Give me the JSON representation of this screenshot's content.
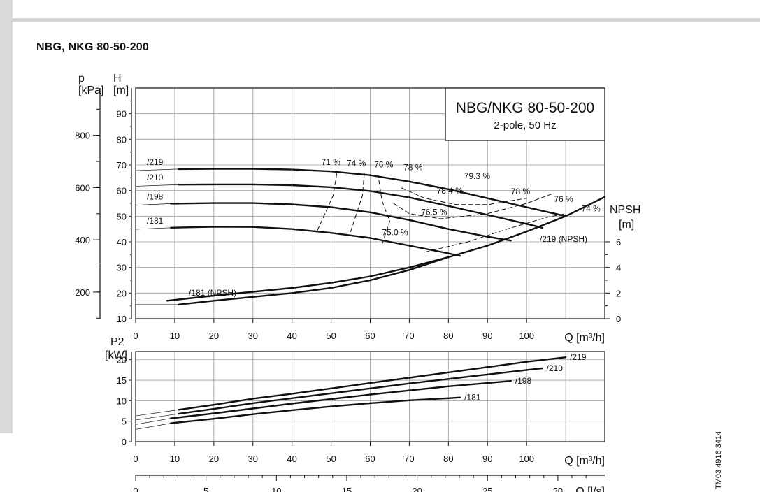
{
  "page": {
    "title": "NBG, NKG 80-50-200",
    "doc_code": "TM03 4916 3414"
  },
  "chart_data": {
    "type": "line",
    "legend_box": {
      "title": "NBG/NKG 80-50-200",
      "subtitle": "2-pole, 50 Hz"
    },
    "x_axis": {
      "label": "Q [m³/h]",
      "ticks": [
        0,
        10,
        20,
        30,
        40,
        50,
        60,
        70,
        80,
        90,
        100
      ],
      "range": [
        0,
        120
      ]
    },
    "x_axis_ls": {
      "label": "Q [l/s]",
      "ticks": [
        0,
        5,
        10,
        15,
        20,
        25,
        30
      ]
    },
    "head": {
      "y_label_left": "H\n[m]",
      "p_label": "p\n[kPa]",
      "ylim": [
        10,
        100
      ],
      "y_ticks": [
        10,
        20,
        30,
        40,
        50,
        60,
        70,
        80,
        90
      ],
      "p_ticks": [
        200,
        400,
        600,
        800
      ],
      "series": [
        {
          "name": "/219",
          "points": [
            [
              11,
              68.4
            ],
            [
              20,
              68.5
            ],
            [
              30,
              68.5
            ],
            [
              40,
              68.2
            ],
            [
              50,
              67.5
            ],
            [
              60,
              66
            ],
            [
              70,
              63.5
            ],
            [
              80,
              60.5
            ],
            [
              90,
              57
            ],
            [
              100,
              53.5
            ],
            [
              110,
              50
            ]
          ]
        },
        {
          "name": "/210",
          "points": [
            [
              11,
              62.3
            ],
            [
              20,
              62.4
            ],
            [
              30,
              62.4
            ],
            [
              40,
              62.1
            ],
            [
              50,
              61.3
            ],
            [
              60,
              59.8
            ],
            [
              70,
              57.3
            ],
            [
              80,
              54
            ],
            [
              90,
              50.5
            ],
            [
              100,
              47
            ],
            [
              104,
              45.5
            ]
          ]
        },
        {
          "name": "/198",
          "points": [
            [
              9,
              54.9
            ],
            [
              20,
              55.1
            ],
            [
              30,
              55.1
            ],
            [
              40,
              54.6
            ],
            [
              50,
              53.5
            ],
            [
              60,
              51.5
            ],
            [
              70,
              48.5
            ],
            [
              80,
              45
            ],
            [
              90,
              42
            ],
            [
              96,
              40.5
            ]
          ]
        },
        {
          "name": "/181",
          "points": [
            [
              9,
              45.5
            ],
            [
              20,
              45.9
            ],
            [
              30,
              45.8
            ],
            [
              40,
              45
            ],
            [
              50,
              43.5
            ],
            [
              60,
              41.5
            ],
            [
              70,
              38.5
            ],
            [
              80,
              35.5
            ],
            [
              83,
              34.5
            ]
          ]
        }
      ],
      "efficiency_labels": [
        "71 %",
        "74 %",
        "76 %",
        "78 %",
        "79.3 %",
        "78.4 %",
        "76.5 %",
        "75.0 %",
        "78 %",
        "76 %",
        "74 %"
      ],
      "npsh": {
        "label": "NPSH\n[m]",
        "ylim": [
          0,
          18
        ],
        "ticks": [
          0,
          2,
          4,
          6
        ],
        "series": [
          {
            "name": "/219 (NPSH)",
            "points": [
              [
                8,
                1.4
              ],
              [
                20,
                1.8
              ],
              [
                30,
                2.1
              ],
              [
                40,
                2.4
              ],
              [
                50,
                2.8
              ],
              [
                60,
                3.3
              ],
              [
                70,
                4.0
              ],
              [
                80,
                4.8
              ],
              [
                90,
                5.7
              ],
              [
                100,
                6.8
              ],
              [
                110,
                8.0
              ],
              [
                120,
                9.5
              ]
            ]
          },
          {
            "name": "/181 (NPSH)",
            "points": [
              [
                11,
                1.1
              ],
              [
                20,
                1.4
              ],
              [
                30,
                1.7
              ],
              [
                40,
                2.0
              ],
              [
                50,
                2.4
              ],
              [
                60,
                3.0
              ],
              [
                70,
                3.8
              ],
              [
                80,
                4.8
              ]
            ]
          }
        ]
      }
    },
    "power": {
      "y_label": "P2\n[kW]",
      "ylim": [
        0,
        22
      ],
      "y_ticks": [
        0,
        5,
        10,
        15,
        20
      ],
      "series": [
        {
          "name": "/219",
          "points": [
            [
              11,
              7.8
            ],
            [
              20,
              9
            ],
            [
              30,
              10.5
            ],
            [
              40,
              11.7
            ],
            [
              50,
              13
            ],
            [
              60,
              14.3
            ],
            [
              70,
              15.6
            ],
            [
              80,
              16.9
            ],
            [
              90,
              18.2
            ],
            [
              100,
              19.5
            ],
            [
              110,
              20.6
            ]
          ]
        },
        {
          "name": "/210",
          "points": [
            [
              11,
              6.8
            ],
            [
              20,
              8
            ],
            [
              30,
              9.4
            ],
            [
              40,
              10.6
            ],
            [
              50,
              11.8
            ],
            [
              60,
              13
            ],
            [
              70,
              14.2
            ],
            [
              80,
              15.3
            ],
            [
              90,
              16.4
            ],
            [
              100,
              17.5
            ],
            [
              104,
              17.9
            ]
          ]
        },
        {
          "name": "/198",
          "points": [
            [
              9,
              5.7
            ],
            [
              20,
              6.9
            ],
            [
              30,
              8.1
            ],
            [
              40,
              9.3
            ],
            [
              50,
              10.4
            ],
            [
              60,
              11.5
            ],
            [
              70,
              12.5
            ],
            [
              80,
              13.5
            ],
            [
              90,
              14.3
            ],
            [
              96,
              14.8
            ]
          ]
        },
        {
          "name": "/181",
          "points": [
            [
              9,
              4.5
            ],
            [
              20,
              5.6
            ],
            [
              30,
              6.7
            ],
            [
              40,
              7.7
            ],
            [
              50,
              8.6
            ],
            [
              60,
              9.4
            ],
            [
              70,
              10.1
            ],
            [
              80,
              10.6
            ],
            [
              83,
              10.8
            ]
          ]
        }
      ]
    }
  }
}
